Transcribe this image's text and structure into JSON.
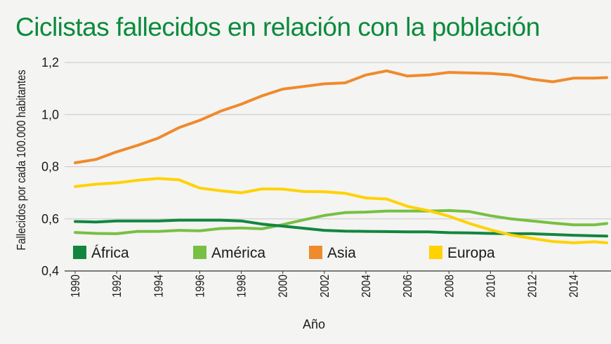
{
  "chart_data": {
    "type": "line",
    "title": "Ciclistas fallecidos en relación con la población",
    "xlabel": "Año",
    "ylabel": "Fallecidos por cada 100.000 habitantes",
    "xlim": [
      1990,
      2015.6
    ],
    "ylim": [
      0.4,
      1.2
    ],
    "grid": true,
    "legend_position": "bottom-inside",
    "y_ticks": [
      "0,4",
      "0,6",
      "0,8",
      "1,0",
      "1,2"
    ],
    "x_ticks": [
      "1990",
      "1992",
      "1994",
      "1996",
      "1998",
      "2000",
      "2002",
      "2004",
      "2006",
      "2008",
      "2010",
      "2012",
      "2014"
    ],
    "x": [
      1990,
      1991,
      1992,
      1993,
      1994,
      1995,
      1996,
      1997,
      1998,
      1999,
      2000,
      2001,
      2002,
      2003,
      2004,
      2005,
      2006,
      2007,
      2008,
      2009,
      2010,
      2011,
      2012,
      2013,
      2014,
      2015,
      2015.6
    ],
    "series": [
      {
        "name": "África",
        "color": "#12863e",
        "values": [
          0.59,
          0.588,
          0.592,
          0.592,
          0.592,
          0.595,
          0.595,
          0.595,
          0.592,
          0.58,
          0.572,
          0.564,
          0.556,
          0.553,
          0.552,
          0.551,
          0.55,
          0.55,
          0.547,
          0.546,
          0.544,
          0.543,
          0.543,
          0.54,
          0.537,
          0.535,
          0.534
        ]
      },
      {
        "name": "América",
        "color": "#77c043",
        "values": [
          0.548,
          0.544,
          0.543,
          0.552,
          0.552,
          0.556,
          0.554,
          0.563,
          0.565,
          0.562,
          0.578,
          0.596,
          0.613,
          0.624,
          0.626,
          0.63,
          0.63,
          0.63,
          0.632,
          0.628,
          0.612,
          0.6,
          0.592,
          0.584,
          0.577,
          0.577,
          0.582
        ]
      },
      {
        "name": "Asia",
        "color": "#ef8a2d",
        "values": [
          0.815,
          0.828,
          0.857,
          0.882,
          0.91,
          0.95,
          0.978,
          1.013,
          1.04,
          1.072,
          1.098,
          1.108,
          1.118,
          1.122,
          1.152,
          1.168,
          1.148,
          1.152,
          1.162,
          1.16,
          1.158,
          1.152,
          1.136,
          1.126,
          1.14,
          1.14,
          1.142
        ]
      },
      {
        "name": "Europa",
        "color": "#ffd200",
        "values": [
          0.724,
          0.733,
          0.738,
          0.748,
          0.755,
          0.75,
          0.718,
          0.708,
          0.7,
          0.715,
          0.714,
          0.705,
          0.704,
          0.698,
          0.68,
          0.676,
          0.648,
          0.632,
          0.61,
          0.582,
          0.558,
          0.538,
          0.525,
          0.513,
          0.508,
          0.512,
          0.508
        ]
      }
    ]
  }
}
